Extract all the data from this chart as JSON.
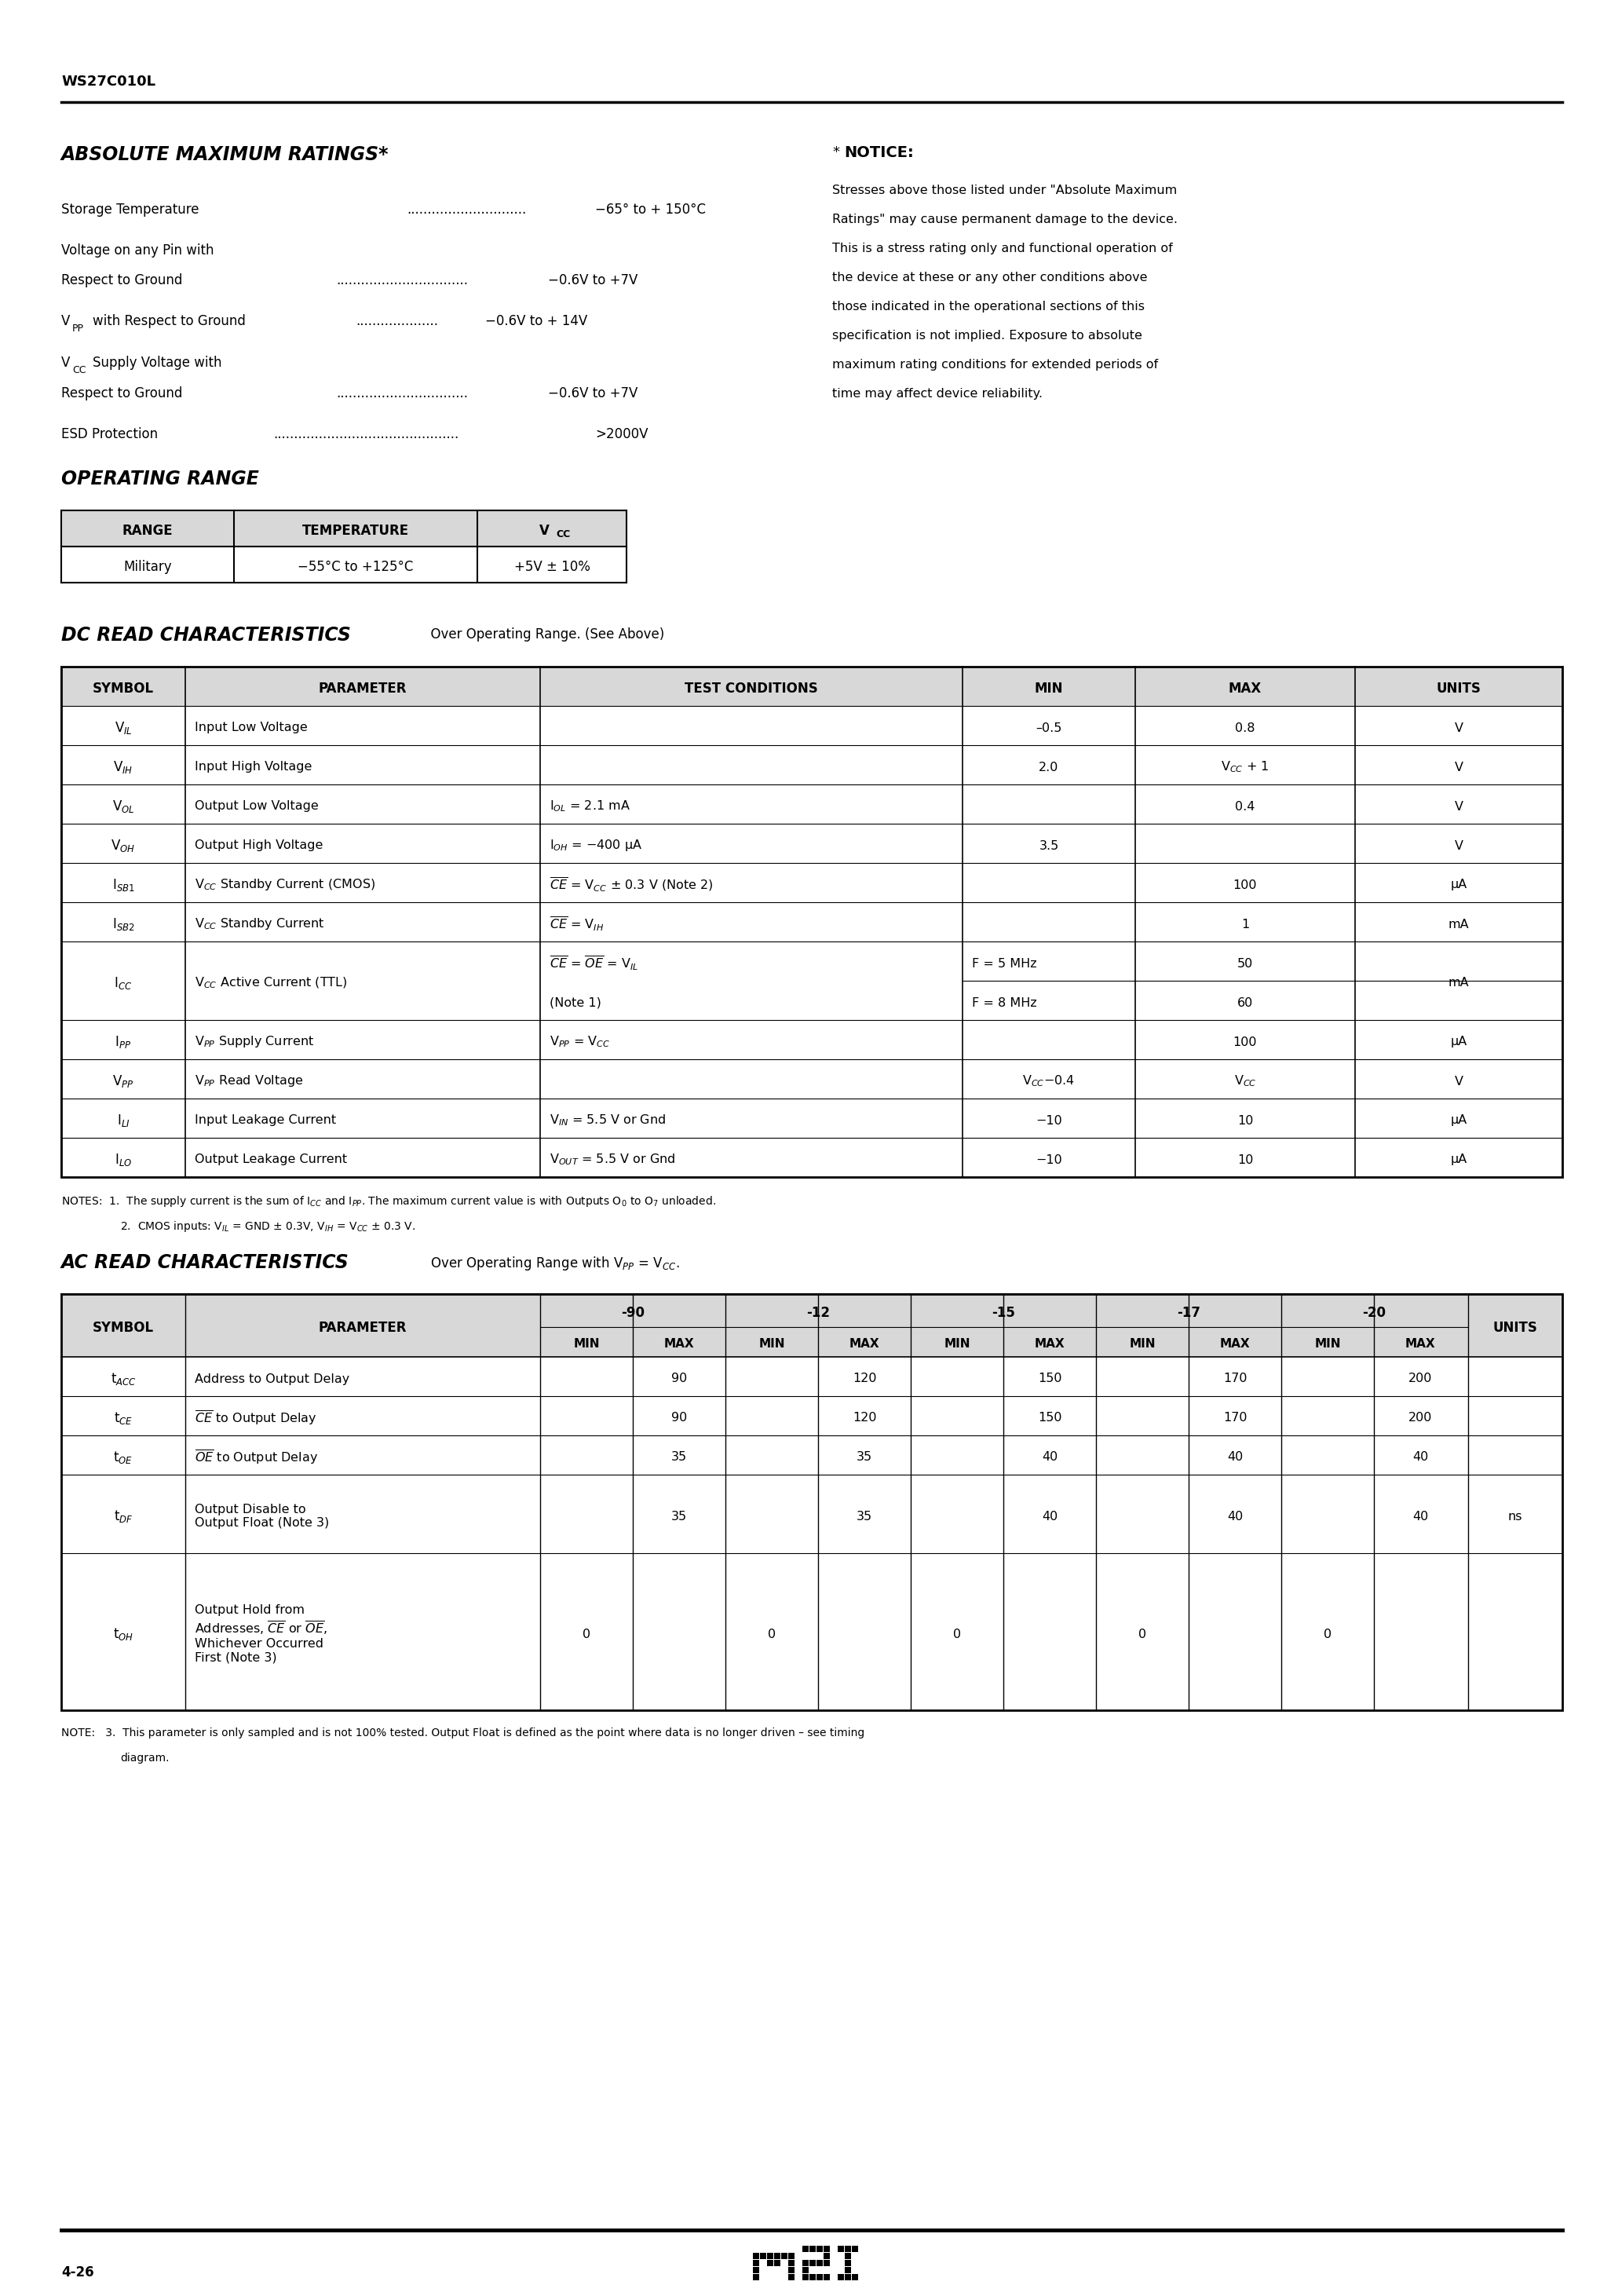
{
  "page_label": "WS27C010L",
  "page_number": "4-26",
  "bg_color": "#ffffff",
  "text_color": "#000000",
  "abs_max_title": "ABSOLUTE MAXIMUM RATINGS*",
  "notice_title": "NOTICE:",
  "notice_lines": [
    "Stresses above those listed under \"Absolute Maximum",
    "Ratings\" may cause permanent damage to the device.",
    "This is a stress rating only and functional operation of",
    "the device at these or any other conditions above",
    "those indicated in the operational sections of this",
    "specification is not implied. Exposure to absolute",
    "maximum rating conditions for extended periods of",
    "time may affect device reliability."
  ],
  "op_range_title": "OPERATING RANGE",
  "dc_title": "DC READ CHARACTERISTICS",
  "dc_subtitle": "Over Operating Range. (See Above)",
  "ac_title": "AC READ CHARACTERISTICS",
  "ac_subtitle": "Over Operating Range with V$_{PP}$ = V$_{CC}$.",
  "speeds": [
    "-90",
    "-12",
    "-15",
    "-17",
    "-20"
  ],
  "page_num": "4-26"
}
